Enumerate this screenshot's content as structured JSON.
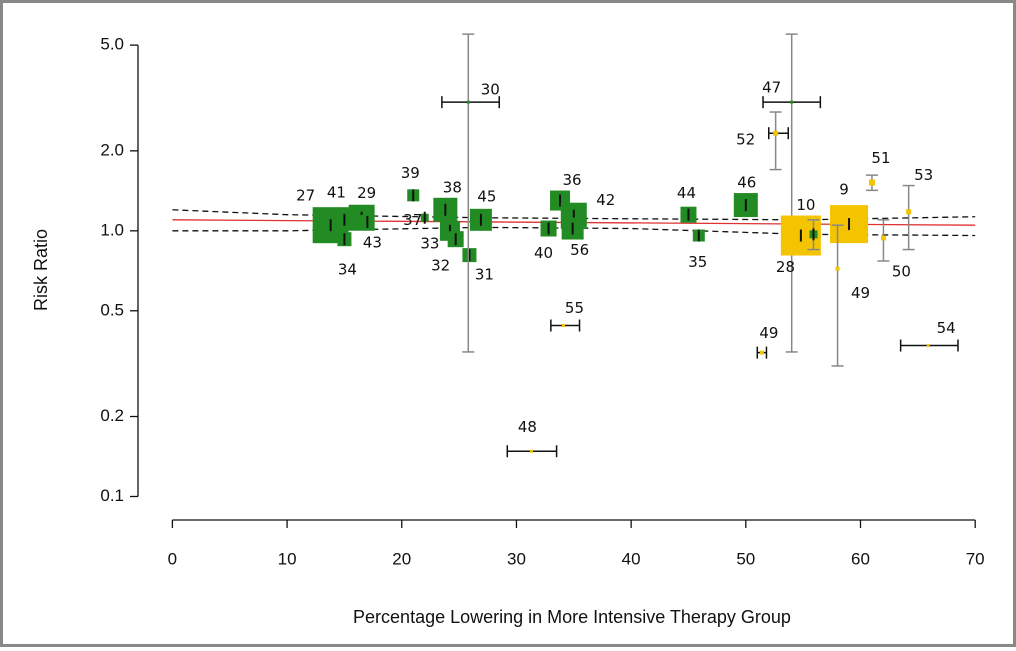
{
  "chart_data": {
    "type": "scatter",
    "x_label": "Percentage Lowering in More Intensive Therapy Group",
    "y_label": "Risk Ratio",
    "y_log": true,
    "xlim": [
      -3,
      72.6
    ],
    "ylim": [
      0.097,
      5.7
    ],
    "xticks": [
      0,
      10,
      20,
      30,
      40,
      50,
      60,
      70
    ],
    "yticks": [
      {
        "value": 5,
        "label": "5.0"
      },
      {
        "value": 2,
        "label": "2.0"
      },
      {
        "value": 1,
        "label": "1.0"
      },
      0.5,
      0.2,
      0.1
    ],
    "points": [
      {
        "label": "27",
        "x": 13.8,
        "y": 1.05,
        "size": 36,
        "color": "#238b23"
      },
      {
        "label": "41",
        "x": 15,
        "y": 1.1,
        "size": 20,
        "color": "#238b23"
      },
      {
        "label": "29",
        "x": 16.5,
        "y": 1.12,
        "size": 26,
        "color": "#238b23"
      },
      {
        "label": "43",
        "x": 17,
        "y": 1.08,
        "size": 14,
        "color": "#238b23"
      },
      {
        "label": "34",
        "x": 15,
        "y": 0.93,
        "size": 14,
        "color": "#238b23"
      },
      {
        "label": "39",
        "x": 21,
        "y": 1.36,
        "size": 12,
        "color": "#238b23"
      },
      {
        "label": "37",
        "x": 22,
        "y": 1.12,
        "size": 8,
        "color": "#238b23"
      },
      {
        "label": "38",
        "x": 23.8,
        "y": 1.2,
        "size": 24,
        "color": "#238b23"
      },
      {
        "label": "33",
        "x": 24.2,
        "y": 1.0,
        "size": 20,
        "color": "#238b23"
      },
      {
        "label": "32",
        "x": 24.7,
        "y": 0.93,
        "size": 16,
        "color": "#238b23"
      },
      {
        "label": "31",
        "x": 25.9,
        "y": 0.81,
        "size": 14,
        "color": "#238b23"
      },
      {
        "label": "45",
        "x": 26.9,
        "y": 1.1,
        "size": 22,
        "color": "#238b23"
      },
      {
        "label": "30",
        "x": 25.8,
        "y": 3.05,
        "size": 3,
        "color": "#238b23",
        "xerr": [
          23.5,
          28.5
        ],
        "yci": [
          0.35,
          5.5
        ]
      },
      {
        "label": "40",
        "x": 32.8,
        "y": 1.02,
        "size": 16,
        "color": "#238b23"
      },
      {
        "label": "36",
        "x": 33.8,
        "y": 1.3,
        "size": 20,
        "color": "#238b23"
      },
      {
        "label": "42",
        "x": 35,
        "y": 1.14,
        "size": 26,
        "color": "#238b23"
      },
      {
        "label": "56",
        "x": 34.9,
        "y": 1.02,
        "size": 22,
        "color": "#238b23"
      },
      {
        "label": "55",
        "x": 34.1,
        "y": 0.44,
        "size": 3,
        "color": "#f5c400",
        "xerr": [
          33,
          35.5
        ]
      },
      {
        "label": "48",
        "x": 31.3,
        "y": 0.148,
        "size": 3,
        "color": "#f5c400",
        "xerr": [
          29.2,
          33.5
        ]
      },
      {
        "label": "44",
        "x": 45,
        "y": 1.15,
        "size": 16,
        "color": "#238b23"
      },
      {
        "label": "35",
        "x": 45.9,
        "y": 0.96,
        "size": 12,
        "color": "#238b23"
      },
      {
        "label": "46",
        "x": 50,
        "y": 1.25,
        "size": 24,
        "color": "#238b23"
      },
      {
        "label": "47",
        "x": 54,
        "y": 3.05,
        "size": 3,
        "color": "#238b23",
        "xerr": [
          51.5,
          56.5
        ],
        "yci": [
          0.35,
          5.5
        ]
      },
      {
        "label": "52",
        "x": 52.6,
        "y": 2.33,
        "size": 5,
        "color": "#f5c400",
        "xerr": [
          52,
          53.7
        ],
        "yci": [
          1.7,
          2.8
        ]
      },
      {
        "label": "10",
        "x": 54.8,
        "y": 0.96,
        "size": 40,
        "color": "#f5c400"
      },
      {
        "label": "28",
        "x": 55.9,
        "y": 0.97,
        "size": 8,
        "color": "#238b23",
        "yci": [
          0.85,
          1.1
        ]
      },
      {
        "label": "9",
        "x": 59,
        "y": 1.06,
        "size": 38,
        "color": "#f5c400"
      },
      {
        "label": "49",
        "x": 58,
        "y": 0.72,
        "size": 4,
        "color": "#f5c400",
        "yci": [
          0.31,
          1.05
        ]
      },
      {
        "label": "49",
        "x": 51.4,
        "y": 0.348,
        "size": 4,
        "color": "#f5c400",
        "xerr": [
          51,
          51.8
        ]
      },
      {
        "label": "51",
        "x": 61,
        "y": 1.52,
        "size": 6,
        "color": "#f5c400",
        "yci": [
          1.42,
          1.62
        ]
      },
      {
        "label": "50",
        "x": 62,
        "y": 0.94,
        "size": 5,
        "color": "#f5c400",
        "yci": [
          0.77,
          1.1
        ]
      },
      {
        "label": "53",
        "x": 64.2,
        "y": 1.18,
        "size": 5,
        "color": "#f5c400",
        "yci": [
          0.85,
          1.48
        ]
      },
      {
        "label": "54",
        "x": 65.9,
        "y": 0.37,
        "size": 3,
        "color": "#f5c400",
        "xerr": [
          63.5,
          68.5
        ]
      }
    ],
    "lines": [
      {
        "x": [
          0,
          70
        ],
        "y": [
          1.1,
          1.05
        ],
        "color": "#e03030",
        "dashed": false
      },
      {
        "x": [
          0,
          10,
          27,
          40,
          55,
          70
        ],
        "y": [
          1.2,
          1.15,
          1.12,
          1.11,
          1.1,
          1.13
        ],
        "color": "#111111",
        "dashed": true
      },
      {
        "x": [
          0,
          10,
          27,
          40,
          55,
          70
        ],
        "y": [
          1.0,
          1.0,
          1.03,
          1.02,
          0.97,
          0.96
        ],
        "color": "#111111",
        "dashed": true
      }
    ]
  }
}
